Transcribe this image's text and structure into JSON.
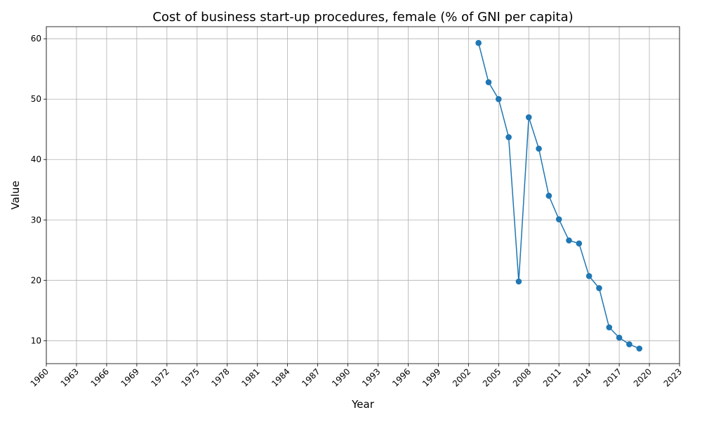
{
  "chart_data": {
    "type": "line",
    "title": "Cost of business start-up procedures, female (% of GNI per capita)",
    "xlabel": "Year",
    "ylabel": "Value",
    "xlim": [
      1960,
      2023
    ],
    "ylim": [
      6.2,
      62.0
    ],
    "x_ticks": [
      1960,
      1963,
      1966,
      1969,
      1972,
      1975,
      1978,
      1981,
      1984,
      1987,
      1990,
      1993,
      1996,
      1999,
      2002,
      2005,
      2008,
      2011,
      2014,
      2017,
      2020,
      2023
    ],
    "y_ticks": [
      10,
      20,
      30,
      40,
      50,
      60
    ],
    "grid": true,
    "color": "#1f77b4",
    "series": [
      {
        "name": "Cost of business start-up procedures, female",
        "x": [
          2003,
          2004,
          2005,
          2006,
          2007,
          2008,
          2009,
          2010,
          2011,
          2012,
          2013,
          2014,
          2015,
          2016,
          2017,
          2018,
          2019
        ],
        "values": [
          59.3,
          52.8,
          50.0,
          43.7,
          19.8,
          47.0,
          41.8,
          34.0,
          30.1,
          26.6,
          26.1,
          20.7,
          18.7,
          12.2,
          10.5,
          9.4,
          8.7
        ]
      }
    ]
  }
}
